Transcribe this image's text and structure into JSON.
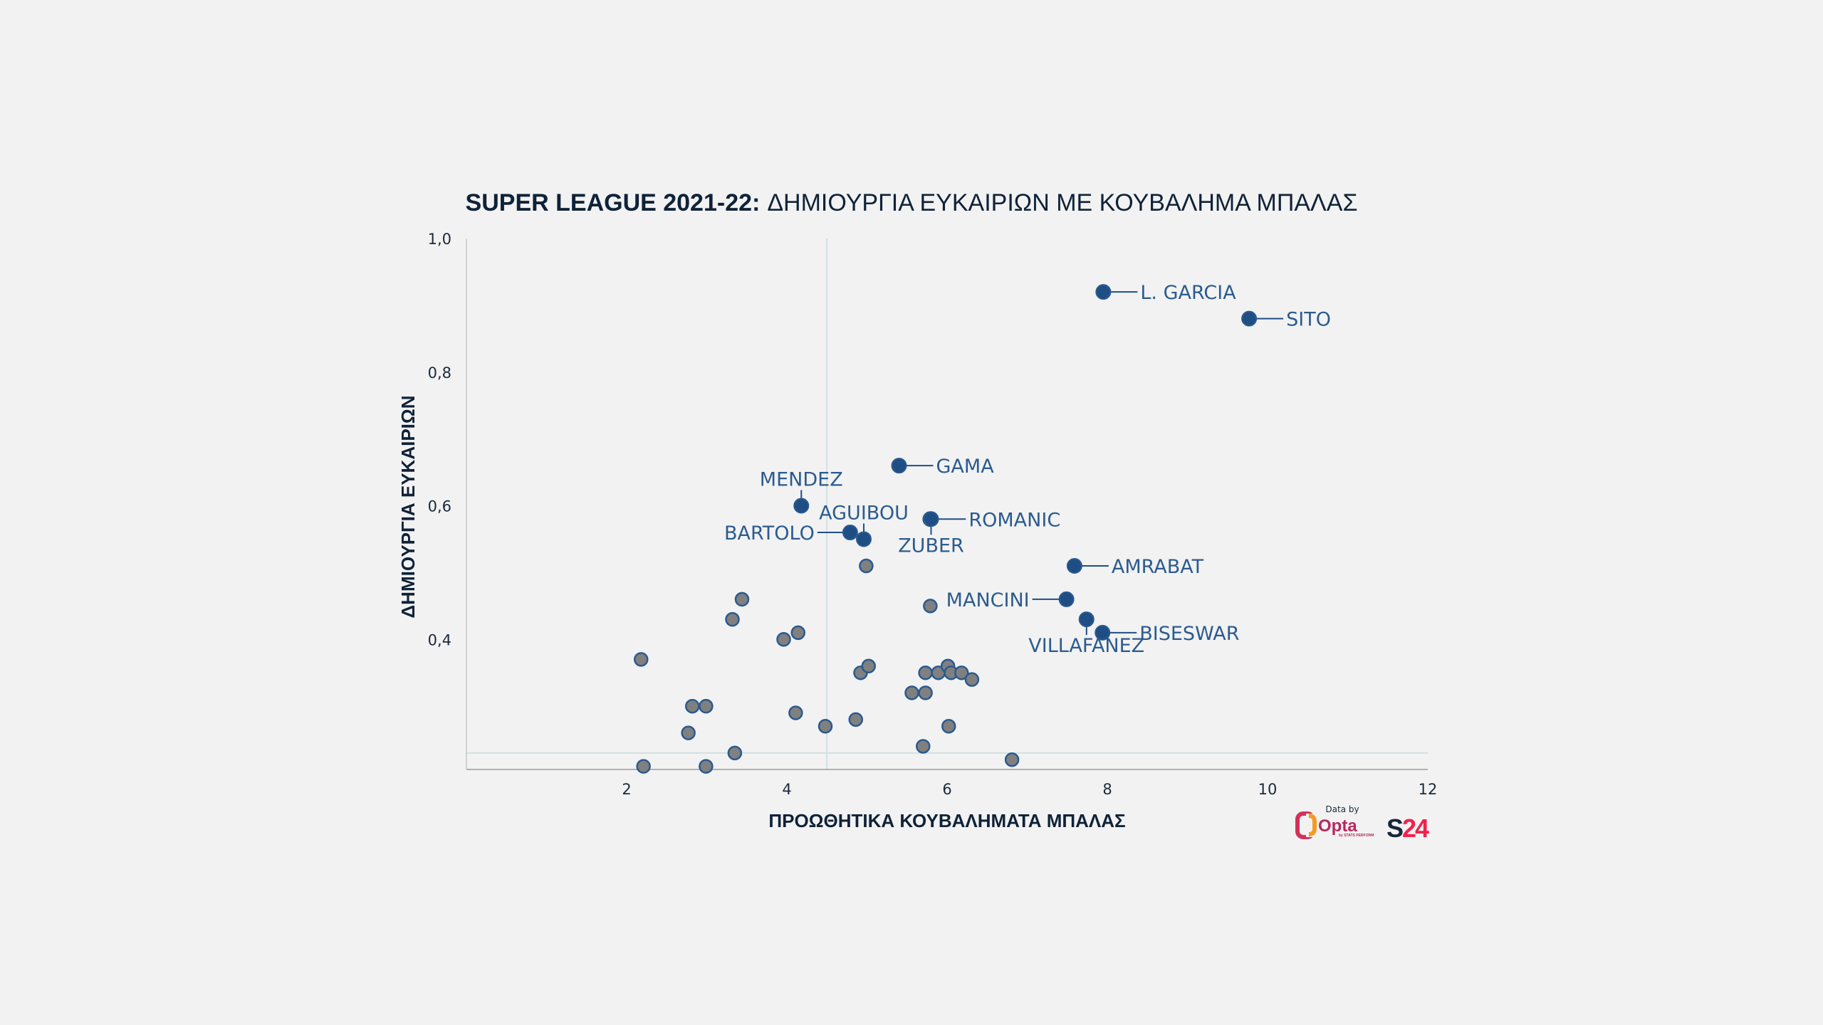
{
  "chart_data": {
    "type": "scatter",
    "title_bold": "SUPER LEAGUE 2021-22:",
    "title_rest": "ΔΗΜΙΟΥΡΓΙΑ ΕΥΚΑΙΡΙΩΝ ΜΕ ΚΟΥΒΑΛΗΜΑ ΜΠΑΛΑΣ",
    "xlabel": "ΠΡΟΩΘΗΤΙΚΑ ΚΟΥΒΑΛΗΜΑΤΑ ΜΠΑΛΑΣ",
    "ylabel": "ΔΗΜΙΟΥΡΓΙΑ ΕΥΚΑΙΡΙΩΝ",
    "xlim": [
      0,
      12
    ],
    "ylim": [
      0.2,
      1.0
    ],
    "xticks": [
      2,
      4,
      6,
      8,
      10,
      12
    ],
    "xtick_labels": [
      "2",
      "4",
      "6",
      "8",
      "10",
      "12"
    ],
    "yticks": [
      0.4,
      0.6,
      0.8,
      1.0
    ],
    "ytick_labels": [
      "0,4",
      "0,6",
      "0,8",
      "1,0"
    ],
    "reference_lines": {
      "x": 4.5,
      "y": 0.23
    },
    "highlighted": [
      {
        "name": "L. GARCIA",
        "x": 7.95,
        "y": 0.92,
        "label_side": "right"
      },
      {
        "name": "SITO",
        "x": 9.77,
        "y": 0.88,
        "label_side": "right"
      },
      {
        "name": "GAMA",
        "x": 5.4,
        "y": 0.66,
        "label_side": "right"
      },
      {
        "name": "MENDEZ",
        "x": 4.18,
        "y": 0.6,
        "label_side": "above"
      },
      {
        "name": "ROMANIC",
        "x": 5.79,
        "y": 0.58,
        "label_side": "right"
      },
      {
        "name": "ZUBER",
        "x": 5.8,
        "y": 0.58,
        "label_side": "below"
      },
      {
        "name": "AGUIBOU",
        "x": 4.96,
        "y": 0.55,
        "label_side": "above"
      },
      {
        "name": "BARTOLO",
        "x": 4.79,
        "y": 0.56,
        "label_side": "left"
      },
      {
        "name": "AMRABAT",
        "x": 7.59,
        "y": 0.51,
        "label_side": "right"
      },
      {
        "name": "MANCINI",
        "x": 7.49,
        "y": 0.46,
        "label_side": "left"
      },
      {
        "name": "VILLAFANEZ",
        "x": 7.74,
        "y": 0.43,
        "label_side": "below"
      },
      {
        "name": "BISESWAR",
        "x": 7.94,
        "y": 0.41,
        "label_side": "right"
      }
    ],
    "others": [
      {
        "x": 2.18,
        "y": 0.37
      },
      {
        "x": 3.44,
        "y": 0.46
      },
      {
        "x": 3.32,
        "y": 0.43
      },
      {
        "x": 3.96,
        "y": 0.4
      },
      {
        "x": 4.14,
        "y": 0.41
      },
      {
        "x": 2.82,
        "y": 0.3
      },
      {
        "x": 2.99,
        "y": 0.3
      },
      {
        "x": 2.77,
        "y": 0.26
      },
      {
        "x": 2.21,
        "y": 0.21
      },
      {
        "x": 2.99,
        "y": 0.21
      },
      {
        "x": 3.35,
        "y": 0.23
      },
      {
        "x": 4.11,
        "y": 0.29
      },
      {
        "x": 4.48,
        "y": 0.27
      },
      {
        "x": 4.86,
        "y": 0.28
      },
      {
        "x": 4.99,
        "y": 0.51
      },
      {
        "x": 4.92,
        "y": 0.35
      },
      {
        "x": 5.02,
        "y": 0.36
      },
      {
        "x": 5.79,
        "y": 0.45
      },
      {
        "x": 5.56,
        "y": 0.32
      },
      {
        "x": 5.73,
        "y": 0.32
      },
      {
        "x": 5.73,
        "y": 0.35
      },
      {
        "x": 5.89,
        "y": 0.35
      },
      {
        "x": 6.01,
        "y": 0.36
      },
      {
        "x": 6.05,
        "y": 0.35
      },
      {
        "x": 6.18,
        "y": 0.35
      },
      {
        "x": 6.31,
        "y": 0.34
      },
      {
        "x": 5.7,
        "y": 0.24
      },
      {
        "x": 6.02,
        "y": 0.27
      },
      {
        "x": 6.81,
        "y": 0.22
      }
    ],
    "colors": {
      "highlight": "#1f4e85",
      "other_fill": "#808080",
      "stroke": "#2a5a8f",
      "label": "#2b5b8f",
      "refline": "#c9dbe0"
    }
  },
  "credits": {
    "data_by": "Data by",
    "opta": "Opta",
    "opta_sub": "by STATS PERFORM",
    "s24_s": "S",
    "s24_24": "24"
  }
}
